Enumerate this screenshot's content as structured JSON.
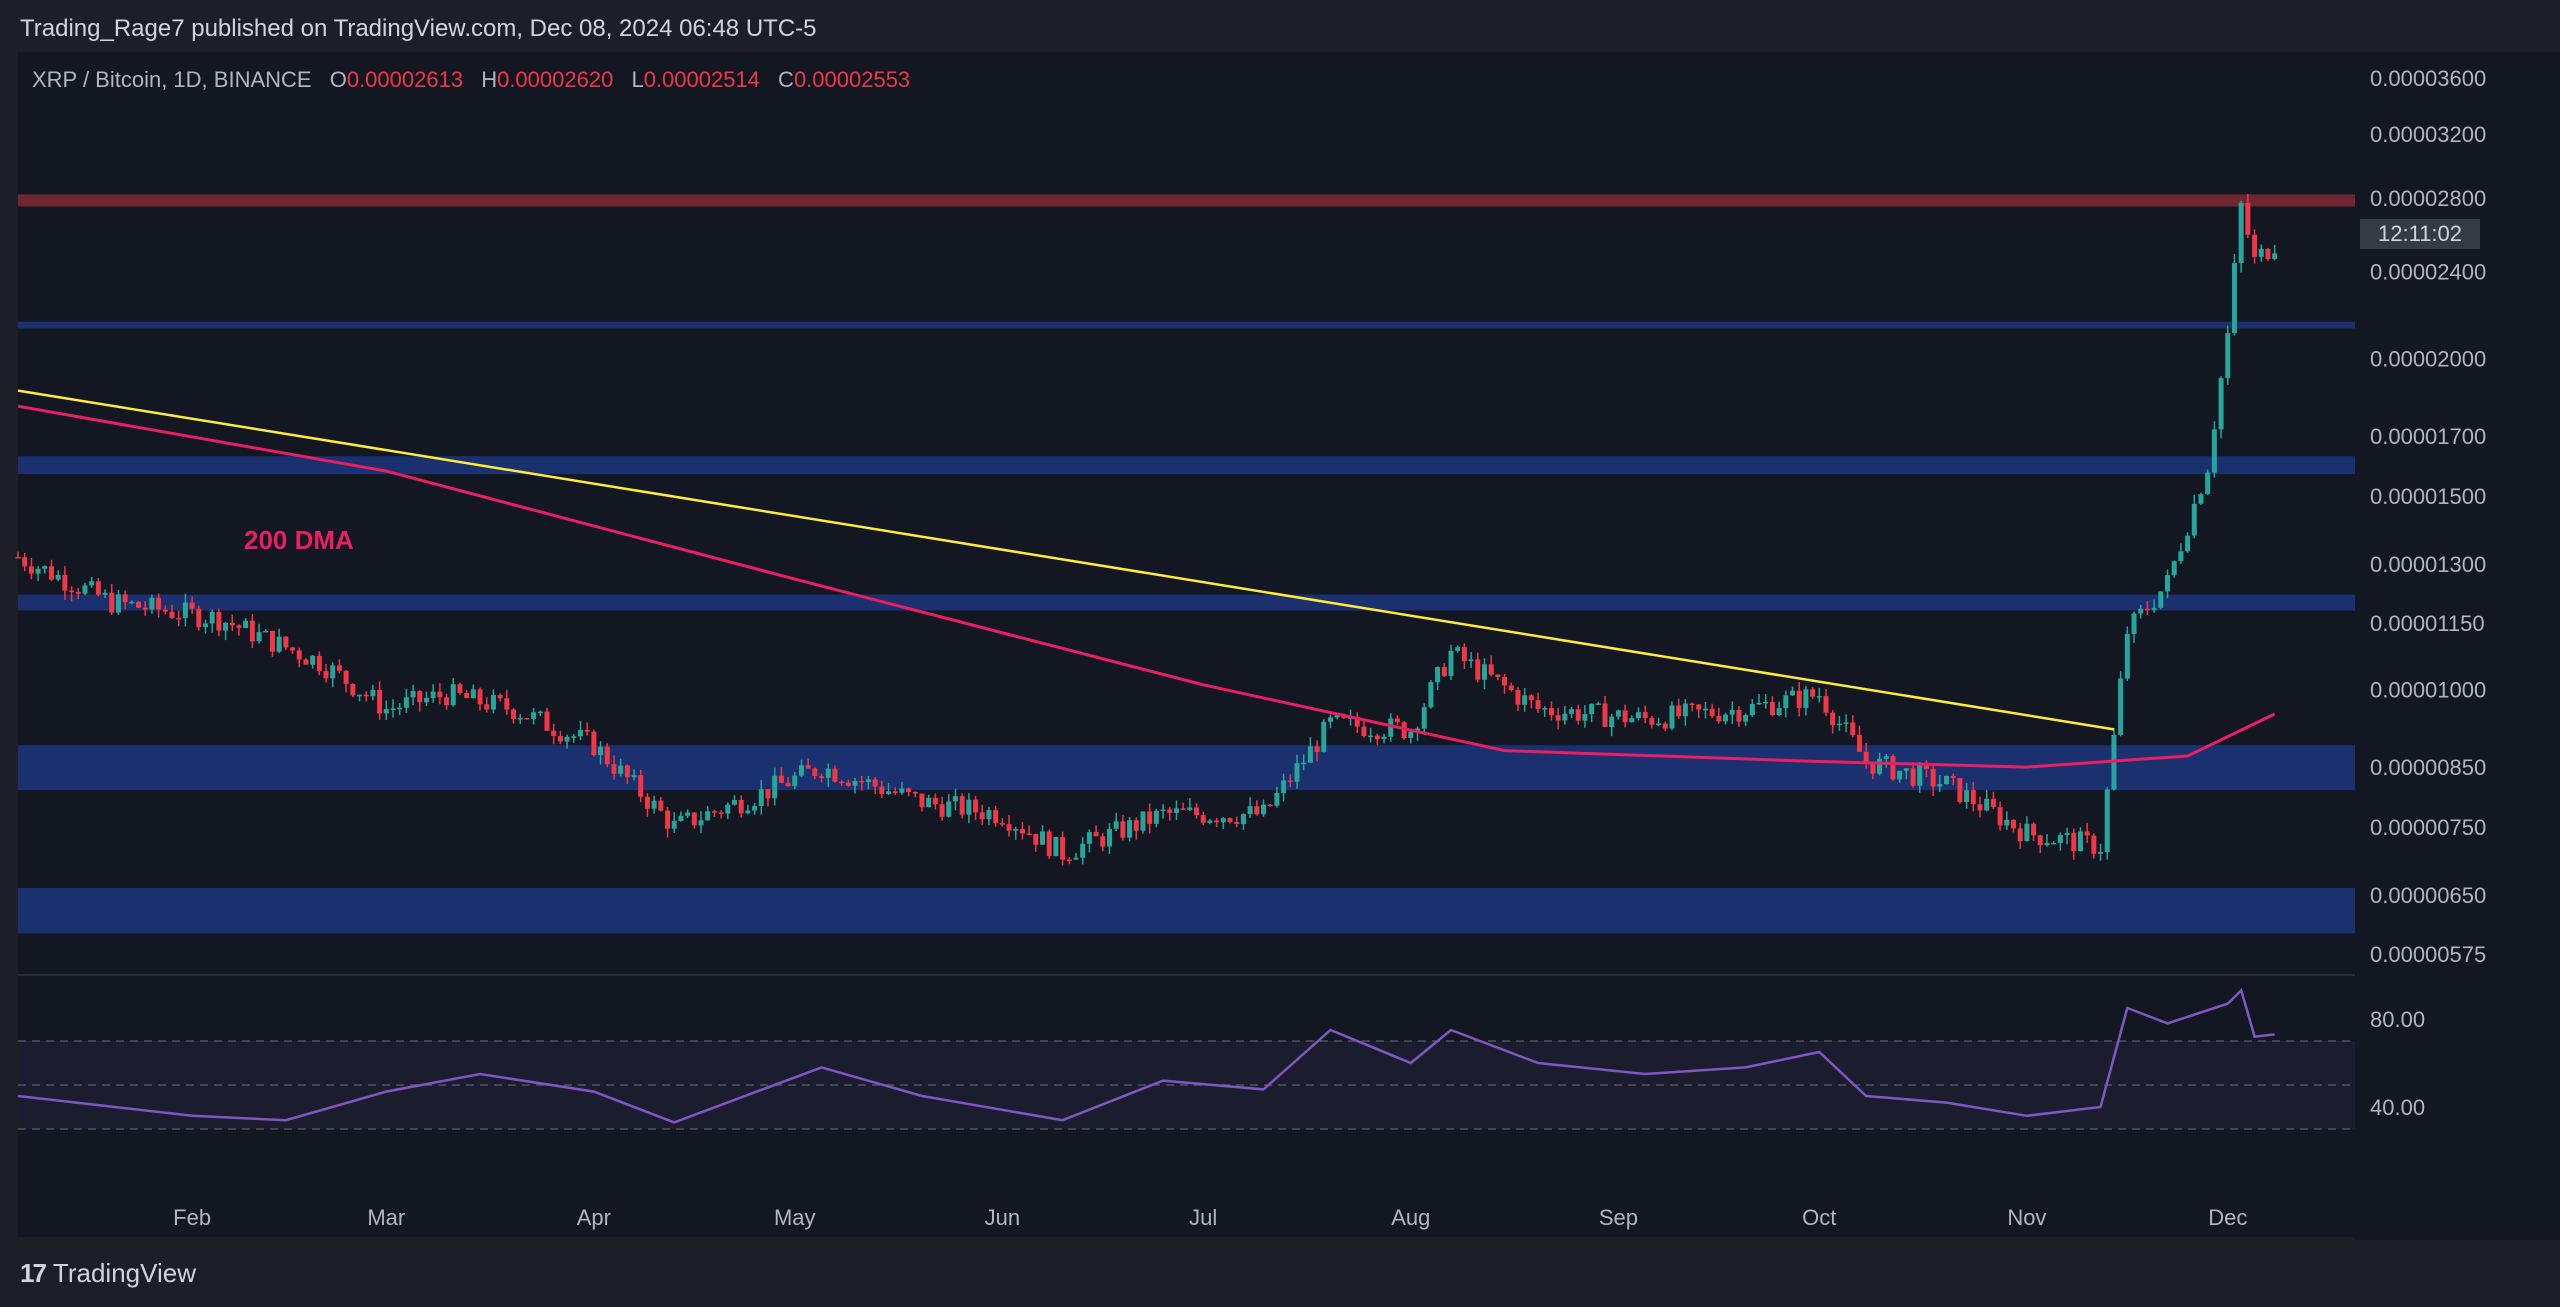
{
  "header": {
    "publisher": "Trading_Rage7 published on TradingView.com, Dec 08, 2024 06:48 UTC-5"
  },
  "symbol": {
    "name": "XRP / Bitcoin, 1D, BINANCE",
    "open_label": "O",
    "open": "0.00002613",
    "high_label": "H",
    "high": "0.00002620",
    "low_label": "L",
    "low": "0.00002514",
    "close_label": "C",
    "close": "0.00002553"
  },
  "countdown": "12:11:02",
  "annotation": "200 DMA",
  "footer": {
    "brand": "TradingView",
    "mark": "17"
  },
  "colors": {
    "up": "#26a69a",
    "down": "#f23645",
    "trendline": "#ffeb3b",
    "dma": "#e91e63",
    "rsi": "#7e57c2",
    "zone": "#1e3a8a",
    "resistance": "#7f2a33"
  },
  "chart_data": {
    "type": "candlestick",
    "price_axis": {
      "ticks": [
        "0.00003600",
        "0.00003200",
        "0.00002800",
        "0.00002400",
        "0.00002000",
        "0.00001700",
        "0.00001500",
        "0.00001300",
        "0.00001150",
        "0.00001000",
        "0.00000850",
        "0.00000750",
        "0.00000650",
        "0.00000575"
      ],
      "scale": "log"
    },
    "time_axis": {
      "ticks": [
        "Feb",
        "Mar",
        "Apr",
        "May",
        "Jun",
        "Jul",
        "Aug",
        "Sep",
        "Oct",
        "Nov",
        "Dec"
      ]
    },
    "zones": [
      {
        "kind": "resistance",
        "from": 2.75e-05,
        "to": 2.82e-05
      },
      {
        "kind": "support",
        "from": 2.13e-05,
        "to": 2.16e-05
      },
      {
        "kind": "support",
        "from": 1.57e-05,
        "to": 1.63e-05
      },
      {
        "kind": "support",
        "from": 1.18e-05,
        "to": 1.22e-05
      },
      {
        "kind": "support",
        "from": 8.1e-06,
        "to": 8.9e-06
      },
      {
        "kind": "support",
        "from": 6e-06,
        "to": 6.6e-06
      }
    ],
    "trendline": [
      {
        "date": "2024-01-06",
        "value": 1.87e-05
      },
      {
        "date": "2024-11-14",
        "value": 9.2e-06
      }
    ],
    "dma200": [
      {
        "date": "2024-01-06",
        "value": 1.81e-05
      },
      {
        "date": "2024-03-01",
        "value": 1.58e-05
      },
      {
        "date": "2024-05-01",
        "value": 1.26e-05
      },
      {
        "date": "2024-07-01",
        "value": 1.01e-05
      },
      {
        "date": "2024-08-15",
        "value": 8.8e-06
      },
      {
        "date": "2024-10-01",
        "value": 8.6e-06
      },
      {
        "date": "2024-11-01",
        "value": 8.5e-06
      },
      {
        "date": "2024-11-25",
        "value": 8.7e-06
      },
      {
        "date": "2024-12-08",
        "value": 9.5e-06
      }
    ],
    "price_series": [
      {
        "date": "2024-01-06",
        "value": 1.32e-05
      },
      {
        "date": "2024-01-20",
        "value": 1.2e-05
      },
      {
        "date": "2024-02-05",
        "value": 1.16e-05
      },
      {
        "date": "2024-02-20",
        "value": 1.06e-05
      },
      {
        "date": "2024-03-01",
        "value": 9.6e-06
      },
      {
        "date": "2024-03-10",
        "value": 9.9e-06
      },
      {
        "date": "2024-03-20",
        "value": 9.6e-06
      },
      {
        "date": "2024-04-01",
        "value": 8.9e-06
      },
      {
        "date": "2024-04-13",
        "value": 7.5e-06
      },
      {
        "date": "2024-04-25",
        "value": 8e-06
      },
      {
        "date": "2024-05-05",
        "value": 8.5e-06
      },
      {
        "date": "2024-05-20",
        "value": 7.9e-06
      },
      {
        "date": "2024-06-01",
        "value": 7.7e-06
      },
      {
        "date": "2024-06-10",
        "value": 7.1e-06
      },
      {
        "date": "2024-06-25",
        "value": 7.7e-06
      },
      {
        "date": "2024-07-10",
        "value": 7.7e-06
      },
      {
        "date": "2024-07-20",
        "value": 9.3e-06
      },
      {
        "date": "2024-08-01",
        "value": 9.2e-06
      },
      {
        "date": "2024-08-07",
        "value": 1.08e-05
      },
      {
        "date": "2024-08-20",
        "value": 9.6e-06
      },
      {
        "date": "2024-09-05",
        "value": 9.4e-06
      },
      {
        "date": "2024-09-20",
        "value": 9.6e-06
      },
      {
        "date": "2024-10-01",
        "value": 9.9e-06
      },
      {
        "date": "2024-10-08",
        "value": 8.6e-06
      },
      {
        "date": "2024-10-20",
        "value": 8.2e-06
      },
      {
        "date": "2024-11-01",
        "value": 7.4e-06
      },
      {
        "date": "2024-11-12",
        "value": 7.2e-06
      },
      {
        "date": "2024-11-16",
        "value": 1.13e-05
      },
      {
        "date": "2024-11-22",
        "value": 1.25e-05
      },
      {
        "date": "2024-11-28",
        "value": 1.6e-05
      },
      {
        "date": "2024-12-01",
        "value": 2.1e-05
      },
      {
        "date": "2024-12-03",
        "value": 2.75e-05
      },
      {
        "date": "2024-12-05",
        "value": 2.45e-05
      },
      {
        "date": "2024-12-08",
        "value": 2.55e-05
      }
    ],
    "rsi": {
      "ticks": [
        "80.00",
        "40.00"
      ],
      "levels": [
        70,
        50,
        30
      ],
      "series": [
        {
          "date": "2024-01-06",
          "value": 45
        },
        {
          "date": "2024-02-01",
          "value": 36
        },
        {
          "date": "2024-02-15",
          "value": 34
        },
        {
          "date": "2024-03-01",
          "value": 47
        },
        {
          "date": "2024-03-15",
          "value": 55
        },
        {
          "date": "2024-04-01",
          "value": 47
        },
        {
          "date": "2024-04-13",
          "value": 33
        },
        {
          "date": "2024-05-05",
          "value": 58
        },
        {
          "date": "2024-05-20",
          "value": 45
        },
        {
          "date": "2024-06-10",
          "value": 34
        },
        {
          "date": "2024-06-25",
          "value": 52
        },
        {
          "date": "2024-07-10",
          "value": 48
        },
        {
          "date": "2024-07-20",
          "value": 75
        },
        {
          "date": "2024-08-01",
          "value": 60
        },
        {
          "date": "2024-08-07",
          "value": 75
        },
        {
          "date": "2024-08-20",
          "value": 60
        },
        {
          "date": "2024-09-05",
          "value": 55
        },
        {
          "date": "2024-09-20",
          "value": 58
        },
        {
          "date": "2024-10-01",
          "value": 65
        },
        {
          "date": "2024-10-08",
          "value": 45
        },
        {
          "date": "2024-10-20",
          "value": 42
        },
        {
          "date": "2024-11-01",
          "value": 36
        },
        {
          "date": "2024-11-12",
          "value": 40
        },
        {
          "date": "2024-11-16",
          "value": 85
        },
        {
          "date": "2024-11-22",
          "value": 78
        },
        {
          "date": "2024-12-01",
          "value": 87
        },
        {
          "date": "2024-12-03",
          "value": 93
        },
        {
          "date": "2024-12-05",
          "value": 72
        },
        {
          "date": "2024-12-08",
          "value": 73
        }
      ]
    }
  }
}
